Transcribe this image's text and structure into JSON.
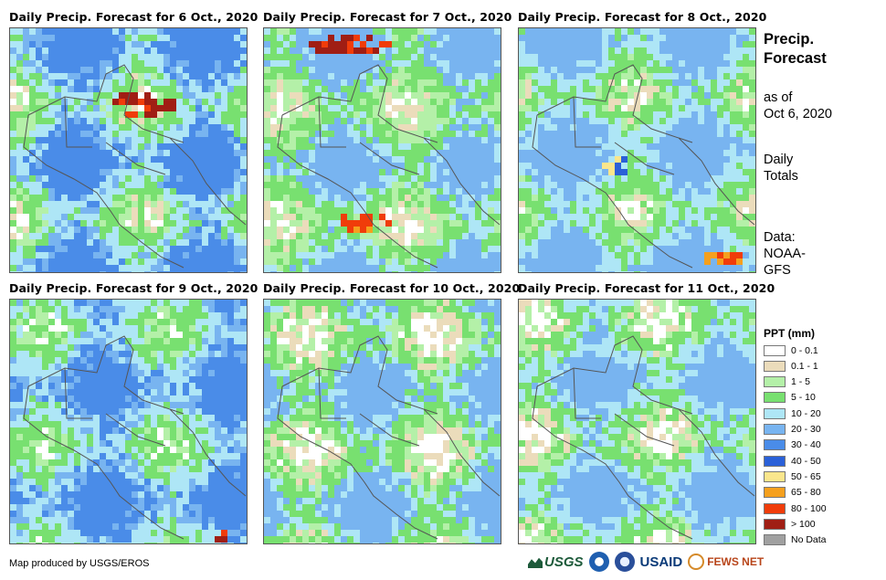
{
  "panels": [
    {
      "title": "Daily Precip. Forecast for 6 Oct., 2020",
      "date": "6 Oct., 2020"
    },
    {
      "title": "Daily Precip. Forecast for 7 Oct., 2020",
      "date": "7 Oct., 2020"
    },
    {
      "title": "Daily Precip. Forecast for 8 Oct., 2020",
      "date": "8 Oct., 2020"
    },
    {
      "title": "Daily Precip. Forecast for 9 Oct., 2020",
      "date": "9 Oct., 2020"
    },
    {
      "title": "Daily Precip. Forecast for 10 Oct., 2020",
      "date": "10 Oct., 2020"
    },
    {
      "title": "Daily Precip. Forecast for 11 Oct., 2020",
      "date": "11 Oct., 2020"
    }
  ],
  "sidebar": {
    "title_line1": "Precip.",
    "title_line2": "Forecast",
    "asof_line1": "as of",
    "asof_line2": "Oct 6, 2020",
    "totals_line1": "Daily",
    "totals_line2": "Totals",
    "data_line1": "Data:",
    "data_line2": "NOAA-",
    "data_line3": "GFS"
  },
  "legend": {
    "title": "PPT (mm)",
    "items": [
      {
        "label": "0 - 0.1",
        "color": "#ffffff"
      },
      {
        "label": "0.1 - 1",
        "color": "#ebdcbb"
      },
      {
        "label": "1 - 5",
        "color": "#b4f0a8"
      },
      {
        "label": "5 - 10",
        "color": "#78e070"
      },
      {
        "label": "10 - 20",
        "color": "#aee6f6"
      },
      {
        "label": "20 - 30",
        "color": "#78b4f0"
      },
      {
        "label": "30 - 40",
        "color": "#4a8ce8"
      },
      {
        "label": "40 - 50",
        "color": "#2a60d8"
      },
      {
        "label": "50 - 65",
        "color": "#fae68c"
      },
      {
        "label": "65 - 80",
        "color": "#f5a01e"
      },
      {
        "label": "80 - 100",
        "color": "#f03c0a"
      },
      {
        "label": "> 100",
        "color": "#a01e14"
      },
      {
        "label": "No Data",
        "color": "#a0a0a0"
      }
    ]
  },
  "footer": {
    "credit": "Map produced by USGS/EROS",
    "logos": {
      "usgs": "USGS",
      "usaid": "USAID",
      "fews": "FEWS NET"
    }
  }
}
